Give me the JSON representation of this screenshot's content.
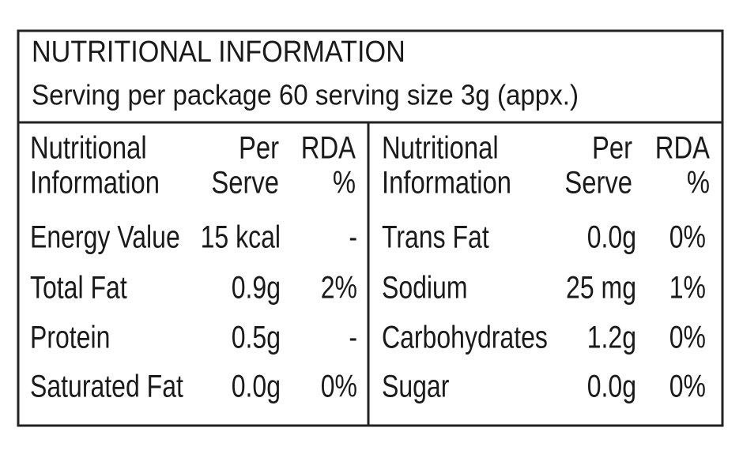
{
  "header": {
    "title": "NUTRITIONAL INFORMATION",
    "subtitle": "Serving per package 60 serving size 3g (appx.)"
  },
  "tables": [
    {
      "columns": [
        [
          "Nutritional",
          "Information"
        ],
        [
          "Per",
          "Serve"
        ],
        [
          "RDA",
          "%"
        ]
      ],
      "rows": [
        [
          "Energy Value",
          "15 kcal",
          "-"
        ],
        [
          "Total Fat",
          "0.9g",
          "2%"
        ],
        [
          "Protein",
          "0.5g",
          "-"
        ],
        [
          "Saturated Fat",
          "0.0g",
          "0%"
        ]
      ]
    },
    {
      "columns": [
        [
          "Nutritional",
          "Information"
        ],
        [
          "Per",
          "Serve"
        ],
        [
          "RDA",
          "%"
        ]
      ],
      "rows": [
        [
          "Trans Fat",
          "0.0g",
          "0%"
        ],
        [
          "Sodium",
          "25 mg",
          "1%"
        ],
        [
          "Carbohydrates",
          "1.2g",
          "0%"
        ],
        [
          "Sugar",
          "0.0g",
          "0%"
        ]
      ]
    }
  ]
}
